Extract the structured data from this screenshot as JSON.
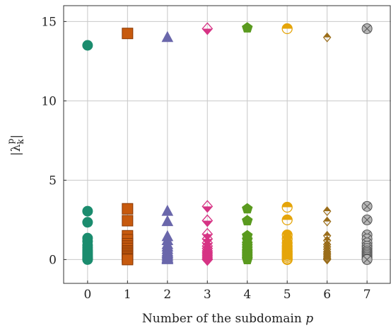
{
  "chart_data": {
    "type": "scatter",
    "xlabel": "Number of the subdomain p",
    "ylabel": "|λ_k^p|",
    "xlim": [
      -0.6,
      7.6
    ],
    "ylim": [
      -1.5,
      16.0
    ],
    "x_ticks": [
      "0",
      "1",
      "2",
      "3",
      "4",
      "5",
      "6",
      "7"
    ],
    "y_ticks": [
      "0",
      "5",
      "10",
      "15"
    ],
    "grid": true,
    "series": [
      {
        "x": 0,
        "marker": "circle",
        "color": "#1b8c6e",
        "values": [
          13.5,
          3.05,
          2.35,
          1.35,
          1.15,
          0.9,
          0.75,
          0.6,
          0.5,
          0.4,
          0.3,
          0.2,
          0.12,
          0.05,
          0.0
        ]
      },
      {
        "x": 1,
        "marker": "square",
        "color": "#c75a0e",
        "values": [
          14.25,
          3.2,
          2.45,
          1.5,
          1.25,
          1.0,
          0.85,
          0.7,
          0.55,
          0.45,
          0.35,
          0.25,
          0.15,
          0.05,
          0.0
        ]
      },
      {
        "x": 2,
        "marker": "triangle",
        "color": "#6a67ab",
        "values": [
          14.0,
          3.05,
          2.4,
          1.45,
          1.2,
          0.95,
          0.8,
          0.65,
          0.5,
          0.4,
          0.3,
          0.2,
          0.1,
          0.05,
          0.0
        ]
      },
      {
        "x": 3,
        "marker": "diamond-half",
        "color": "#d63384",
        "values": [
          14.55,
          3.35,
          2.45,
          1.6,
          1.3,
          1.05,
          0.85,
          0.7,
          0.55,
          0.45,
          0.35,
          0.25,
          0.15,
          0.05,
          0.0
        ]
      },
      {
        "x": 4,
        "marker": "pentagon",
        "color": "#5a9a1f",
        "values": [
          14.6,
          3.2,
          2.45,
          1.5,
          1.25,
          1.0,
          0.85,
          0.7,
          0.55,
          0.45,
          0.35,
          0.25,
          0.15,
          0.05,
          0.0
        ]
      },
      {
        "x": 5,
        "marker": "circle-half",
        "color": "#e5a50a",
        "values": [
          14.55,
          3.3,
          2.5,
          1.55,
          1.3,
          1.05,
          0.85,
          0.7,
          0.55,
          0.45,
          0.35,
          0.25,
          0.15,
          0.05,
          0.0
        ]
      },
      {
        "x": 6,
        "marker": "diamond-small",
        "color": "#9a6d1a",
        "values": [
          14.0,
          3.05,
          2.4,
          1.5,
          1.2,
          0.95,
          0.8,
          0.65,
          0.5,
          0.4,
          0.3,
          0.2,
          0.1,
          0.05,
          0.0
        ]
      },
      {
        "x": 7,
        "marker": "circle-x",
        "color": "#7a7a7a",
        "values": [
          14.55,
          3.35,
          2.5,
          1.55,
          1.3,
          1.05,
          0.85,
          0.7,
          0.55,
          0.45,
          0.35,
          0.25,
          0.15,
          0.05,
          0.0
        ]
      }
    ]
  }
}
